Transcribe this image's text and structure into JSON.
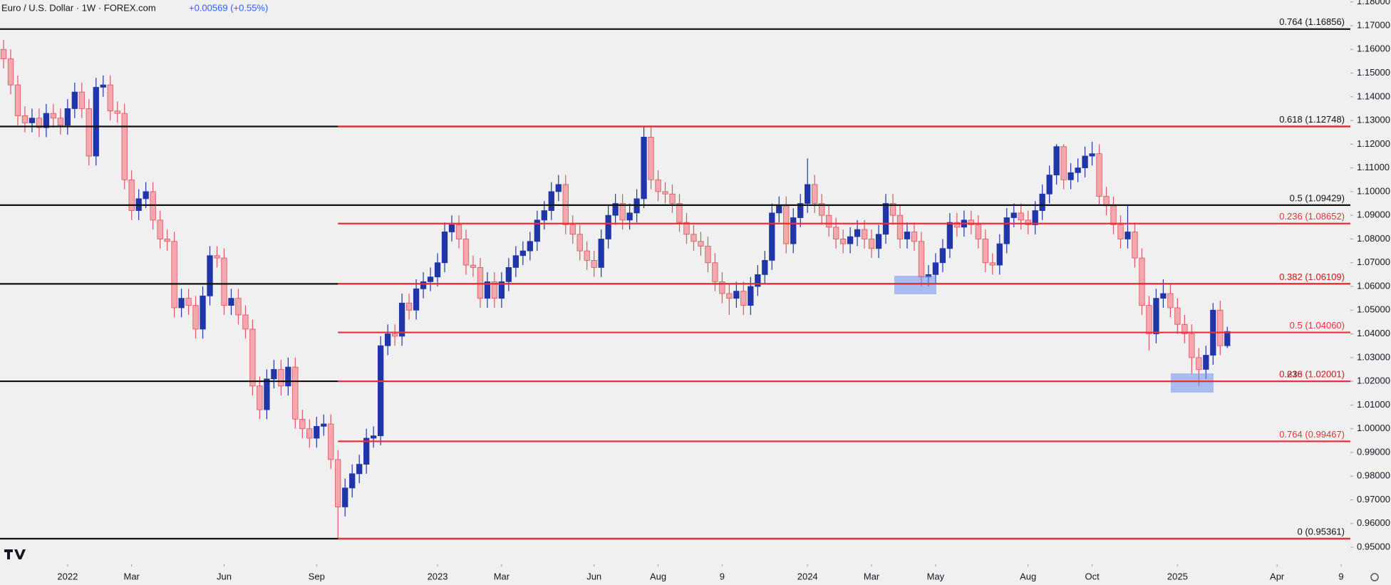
{
  "chart_data": {
    "type": "candlestick",
    "title": "Euro / U.S. Dollar · 1W · FOREX.com",
    "change": "+0.00569 (+0.55%)",
    "up_color": "#2036a8",
    "down_color": "#f4a7ad",
    "down_edge": "#d9575f",
    "ylim": [
      0.94279,
      1.18082
    ],
    "xlim": [
      -0.5,
      189.3
    ],
    "yticks": [
      {
        "value": 0.95,
        "label": "0.95000"
      },
      {
        "value": 0.96,
        "label": "0.96000"
      },
      {
        "value": 0.97,
        "label": "0.97000"
      },
      {
        "value": 0.98,
        "label": "0.98000"
      },
      {
        "value": 0.99,
        "label": "0.99000"
      },
      {
        "value": 1.0,
        "label": "1.00000"
      },
      {
        "value": 1.01,
        "label": "1.01000"
      },
      {
        "value": 1.02,
        "label": "1.02000"
      },
      {
        "value": 1.03,
        "label": "1.03000"
      },
      {
        "value": 1.04,
        "label": "1.04000"
      },
      {
        "value": 1.05,
        "label": "1.05000"
      },
      {
        "value": 1.06,
        "label": "1.06000"
      },
      {
        "value": 1.07,
        "label": "1.07000"
      },
      {
        "value": 1.08,
        "label": "1.08000"
      },
      {
        "value": 1.09,
        "label": "1.09000"
      },
      {
        "value": 1.1,
        "label": "1.10000"
      },
      {
        "value": 1.11,
        "label": "1.11000"
      },
      {
        "value": 1.12,
        "label": "1.12000"
      },
      {
        "value": 1.13,
        "label": "1.13000"
      },
      {
        "value": 1.14,
        "label": "1.14000"
      },
      {
        "value": 1.15,
        "label": "1.15000"
      },
      {
        "value": 1.16,
        "label": "1.16000"
      },
      {
        "value": 1.17,
        "label": "1.17000"
      },
      {
        "value": 1.18,
        "label": "1.18000"
      }
    ],
    "xticks": [
      {
        "value": 9,
        "label": "2022"
      },
      {
        "value": 18,
        "label": "Mar"
      },
      {
        "value": 31,
        "label": "Jun"
      },
      {
        "value": 44,
        "label": "Sep"
      },
      {
        "value": 61,
        "label": "2023"
      },
      {
        "value": 70,
        "label": "Mar"
      },
      {
        "value": 83,
        "label": "Jun"
      },
      {
        "value": 92,
        "label": "Aug"
      },
      {
        "value": 101,
        "label": "9"
      },
      {
        "value": 113,
        "label": "2024"
      },
      {
        "value": 122,
        "label": "Mar"
      },
      {
        "value": 131,
        "label": "May"
      },
      {
        "value": 144,
        "label": "Aug"
      },
      {
        "value": 153,
        "label": "Oct"
      },
      {
        "value": 165,
        "label": "2025"
      },
      {
        "value": 179,
        "label": "Apr"
      },
      {
        "value": 188,
        "label": "9"
      }
    ],
    "fib_sets": [
      {
        "color": "#111111",
        "levels": [
          {
            "label": "0.764 (1.16856)",
            "value": 1.16856
          },
          {
            "label": "0.618 (1.12748)",
            "value": 1.12748
          },
          {
            "label": "0.5 (1.09429)",
            "value": 1.09429
          },
          {
            "label": "0.382 (1.06109)",
            "value": 1.06109
          },
          {
            "label": "0.236 (1.02001)",
            "value": 1.02001
          },
          {
            "label": "0 (0.95361)",
            "value": 0.95361
          }
        ]
      },
      {
        "color": "#e8303a",
        "from_x": 47,
        "levels": [
          {
            "value": 1.12748
          },
          {
            "label": "0.236 (1.08652)",
            "value": 1.08652
          },
          {
            "label": "0.382 (1.06109)",
            "value": 1.06109
          },
          {
            "label": "0.5 (1.04060)",
            "value": 1.0406
          },
          {
            "label": "0.618 (1.02001)",
            "value": 1.02001
          },
          {
            "label": "0.764 (0.99467)",
            "value": 0.99467
          },
          {
            "value": 0.95361
          }
        ]
      }
    ],
    "open": [
      1.16,
      1.156,
      1.145,
      1.132,
      1.129,
      1.131,
      1.127,
      1.133,
      1.131,
      1.128,
      1.135,
      1.142,
      1.135,
      1.115,
      1.144,
      1.145,
      1.134,
      1.133,
      1.105,
      1.092,
      1.097,
      1.1,
      1.088,
      1.08,
      1.079,
      1.051,
      1.055,
      1.052,
      1.042,
      1.056,
      1.073,
      1.072,
      1.052,
      1.055,
      1.048,
      1.042,
      1.018,
      1.008,
      1.021,
      1.025,
      1.018,
      1.026,
      1.004,
      1.0,
      0.996,
      1.001,
      1.002,
      0.987,
      0.967,
      0.975,
      0.981,
      0.985,
      0.996,
      0.997,
      1.035,
      1.04,
      1.039,
      1.053,
      1.05,
      1.059,
      1.062,
      1.064,
      1.07,
      1.083,
      1.086,
      1.08,
      1.069,
      1.068,
      1.055,
      1.062,
      1.055,
      1.062,
      1.068,
      1.073,
      1.075,
      1.079,
      1.088,
      1.092,
      1.1,
      1.103,
      1.086,
      1.082,
      1.075,
      1.071,
      1.068,
      1.08,
      1.09,
      1.095,
      1.088,
      1.091,
      1.097,
      1.123,
      1.105,
      1.1,
      1.099,
      1.095,
      1.087,
      1.082,
      1.079,
      1.077,
      1.07,
      1.062,
      1.057,
      1.055,
      1.058,
      1.052,
      1.06,
      1.065,
      1.071,
      1.091,
      1.094,
      1.078,
      1.089,
      1.095,
      1.103,
      1.095,
      1.09,
      1.085,
      1.08,
      1.078,
      1.081,
      1.084,
      1.08,
      1.076,
      1.082,
      1.095,
      1.09,
      1.08,
      1.083,
      1.079,
      1.064,
      1.065,
      1.07,
      1.076,
      1.087,
      1.085,
      1.088,
      1.086,
      1.08,
      1.07,
      1.069,
      1.078,
      1.089,
      1.091,
      1.088,
      1.086,
      1.092,
      1.099,
      1.107,
      1.119,
      1.105,
      1.108,
      1.11,
      1.115,
      1.116,
      1.098,
      1.094,
      1.086,
      1.08,
      1.083,
      1.072,
      1.052,
      1.04,
      1.055,
      1.057,
      1.051,
      1.044,
      1.04,
      1.03,
      1.025,
      1.031,
      1.05,
      1.035
    ],
    "high": [
      1.164,
      1.16,
      1.149,
      1.136,
      1.135,
      1.135,
      1.137,
      1.137,
      1.135,
      1.139,
      1.146,
      1.146,
      1.139,
      1.148,
      1.149,
      1.149,
      1.138,
      1.137,
      1.109,
      1.101,
      1.104,
      1.104,
      1.092,
      1.084,
      1.083,
      1.059,
      1.059,
      1.056,
      1.06,
      1.077,
      1.077,
      1.076,
      1.059,
      1.059,
      1.052,
      1.046,
      1.022,
      1.025,
      1.029,
      1.029,
      1.03,
      1.03,
      1.008,
      1.004,
      1.005,
      1.006,
      1.006,
      0.991,
      0.979,
      0.985,
      0.989,
      1.0,
      1.001,
      1.039,
      1.044,
      1.044,
      1.057,
      1.057,
      1.063,
      1.066,
      1.068,
      1.074,
      1.087,
      1.09,
      1.09,
      1.084,
      1.073,
      1.072,
      1.066,
      1.066,
      1.066,
      1.072,
      1.077,
      1.079,
      1.083,
      1.092,
      1.096,
      1.104,
      1.107,
      1.107,
      1.09,
      1.086,
      1.079,
      1.075,
      1.084,
      1.094,
      1.099,
      1.099,
      1.095,
      1.101,
      1.1275,
      1.127,
      1.109,
      1.104,
      1.103,
      1.099,
      1.091,
      1.086,
      1.083,
      1.081,
      1.074,
      1.066,
      1.061,
      1.062,
      1.062,
      1.064,
      1.069,
      1.075,
      1.095,
      1.098,
      1.098,
      1.093,
      1.099,
      1.114,
      1.107,
      1.099,
      1.094,
      1.089,
      1.084,
      1.085,
      1.088,
      1.088,
      1.084,
      1.086,
      1.099,
      1.099,
      1.094,
      1.087,
      1.087,
      1.083,
      1.069,
      1.074,
      1.08,
      1.091,
      1.091,
      1.092,
      1.092,
      1.09,
      1.084,
      1.074,
      1.082,
      1.093,
      1.095,
      1.095,
      1.092,
      1.096,
      1.103,
      1.111,
      1.12,
      1.12,
      1.112,
      1.114,
      1.119,
      1.121,
      1.12,
      1.102,
      1.098,
      1.09,
      1.094,
      1.087,
      1.076,
      1.056,
      1.059,
      1.063,
      1.061,
      1.055,
      1.048,
      1.044,
      1.034,
      1.035,
      1.053,
      1.054,
      1.043
    ],
    "low": [
      1.152,
      1.141,
      1.128,
      1.125,
      1.125,
      1.123,
      1.123,
      1.127,
      1.124,
      1.124,
      1.131,
      1.131,
      1.111,
      1.111,
      1.14,
      1.13,
      1.129,
      1.101,
      1.088,
      1.088,
      1.093,
      1.084,
      1.076,
      1.075,
      1.047,
      1.047,
      1.048,
      1.038,
      1.038,
      1.052,
      1.068,
      1.048,
      1.048,
      1.044,
      1.038,
      1.014,
      1.004,
      1.004,
      1.017,
      1.014,
      1.014,
      1.0,
      0.996,
      0.992,
      0.992,
      0.997,
      0.983,
      0.9536,
      0.963,
      0.971,
      0.977,
      0.981,
      0.992,
      0.993,
      1.031,
      1.035,
      1.035,
      1.046,
      1.046,
      1.055,
      1.058,
      1.06,
      1.066,
      1.079,
      1.076,
      1.065,
      1.064,
      1.051,
      1.051,
      1.051,
      1.051,
      1.058,
      1.064,
      1.069,
      1.071,
      1.075,
      1.084,
      1.088,
      1.096,
      1.082,
      1.078,
      1.071,
      1.067,
      1.064,
      1.064,
      1.076,
      1.086,
      1.084,
      1.084,
      1.087,
      1.093,
      1.101,
      1.096,
      1.095,
      1.091,
      1.083,
      1.078,
      1.075,
      1.073,
      1.066,
      1.058,
      1.053,
      1.048,
      1.051,
      1.048,
      1.048,
      1.056,
      1.061,
      1.067,
      1.087,
      1.074,
      1.074,
      1.085,
      1.091,
      1.091,
      1.086,
      1.081,
      1.076,
      1.074,
      1.074,
      1.077,
      1.076,
      1.072,
      1.072,
      1.078,
      1.086,
      1.076,
      1.076,
      1.075,
      1.06,
      1.06,
      1.061,
      1.066,
      1.072,
      1.081,
      1.081,
      1.082,
      1.076,
      1.066,
      1.065,
      1.065,
      1.074,
      1.085,
      1.084,
      1.082,
      1.082,
      1.088,
      1.095,
      1.103,
      1.101,
      1.101,
      1.104,
      1.106,
      1.111,
      1.094,
      1.09,
      1.082,
      1.076,
      1.076,
      1.068,
      1.048,
      1.033,
      1.036,
      1.051,
      1.047,
      1.04,
      1.036,
      1.023,
      1.018,
      1.021,
      1.027,
      1.031,
      1.034
    ],
    "close": [
      1.156,
      1.145,
      1.132,
      1.129,
      1.131,
      1.127,
      1.133,
      1.131,
      1.128,
      1.135,
      1.142,
      1.135,
      1.115,
      1.144,
      1.145,
      1.134,
      1.133,
      1.105,
      1.092,
      1.097,
      1.1,
      1.088,
      1.08,
      1.079,
      1.051,
      1.055,
      1.052,
      1.042,
      1.056,
      1.073,
      1.072,
      1.052,
      1.055,
      1.048,
      1.042,
      1.018,
      1.008,
      1.021,
      1.025,
      1.018,
      1.026,
      1.004,
      1.0,
      0.996,
      1.001,
      1.002,
      0.987,
      0.967,
      0.975,
      0.981,
      0.985,
      0.996,
      0.997,
      1.035,
      1.04,
      1.039,
      1.053,
      1.05,
      1.059,
      1.062,
      1.064,
      1.07,
      1.083,
      1.086,
      1.08,
      1.069,
      1.068,
      1.055,
      1.062,
      1.055,
      1.062,
      1.068,
      1.073,
      1.075,
      1.079,
      1.088,
      1.092,
      1.1,
      1.103,
      1.086,
      1.082,
      1.075,
      1.071,
      1.068,
      1.08,
      1.09,
      1.095,
      1.088,
      1.091,
      1.097,
      1.123,
      1.105,
      1.1,
      1.099,
      1.095,
      1.087,
      1.082,
      1.079,
      1.077,
      1.07,
      1.062,
      1.057,
      1.055,
      1.058,
      1.052,
      1.06,
      1.065,
      1.071,
      1.091,
      1.094,
      1.078,
      1.089,
      1.095,
      1.103,
      1.095,
      1.09,
      1.085,
      1.08,
      1.078,
      1.081,
      1.084,
      1.08,
      1.076,
      1.082,
      1.095,
      1.09,
      1.08,
      1.083,
      1.079,
      1.064,
      1.065,
      1.07,
      1.076,
      1.087,
      1.085,
      1.088,
      1.086,
      1.08,
      1.07,
      1.069,
      1.078,
      1.089,
      1.091,
      1.088,
      1.086,
      1.092,
      1.099,
      1.107,
      1.119,
      1.105,
      1.108,
      1.11,
      1.115,
      1.116,
      1.098,
      1.094,
      1.086,
      1.08,
      1.083,
      1.072,
      1.052,
      1.04,
      1.055,
      1.057,
      1.051,
      1.044,
      1.04,
      1.03,
      1.025,
      1.031,
      1.05,
      1.035,
      1.041
    ]
  }
}
